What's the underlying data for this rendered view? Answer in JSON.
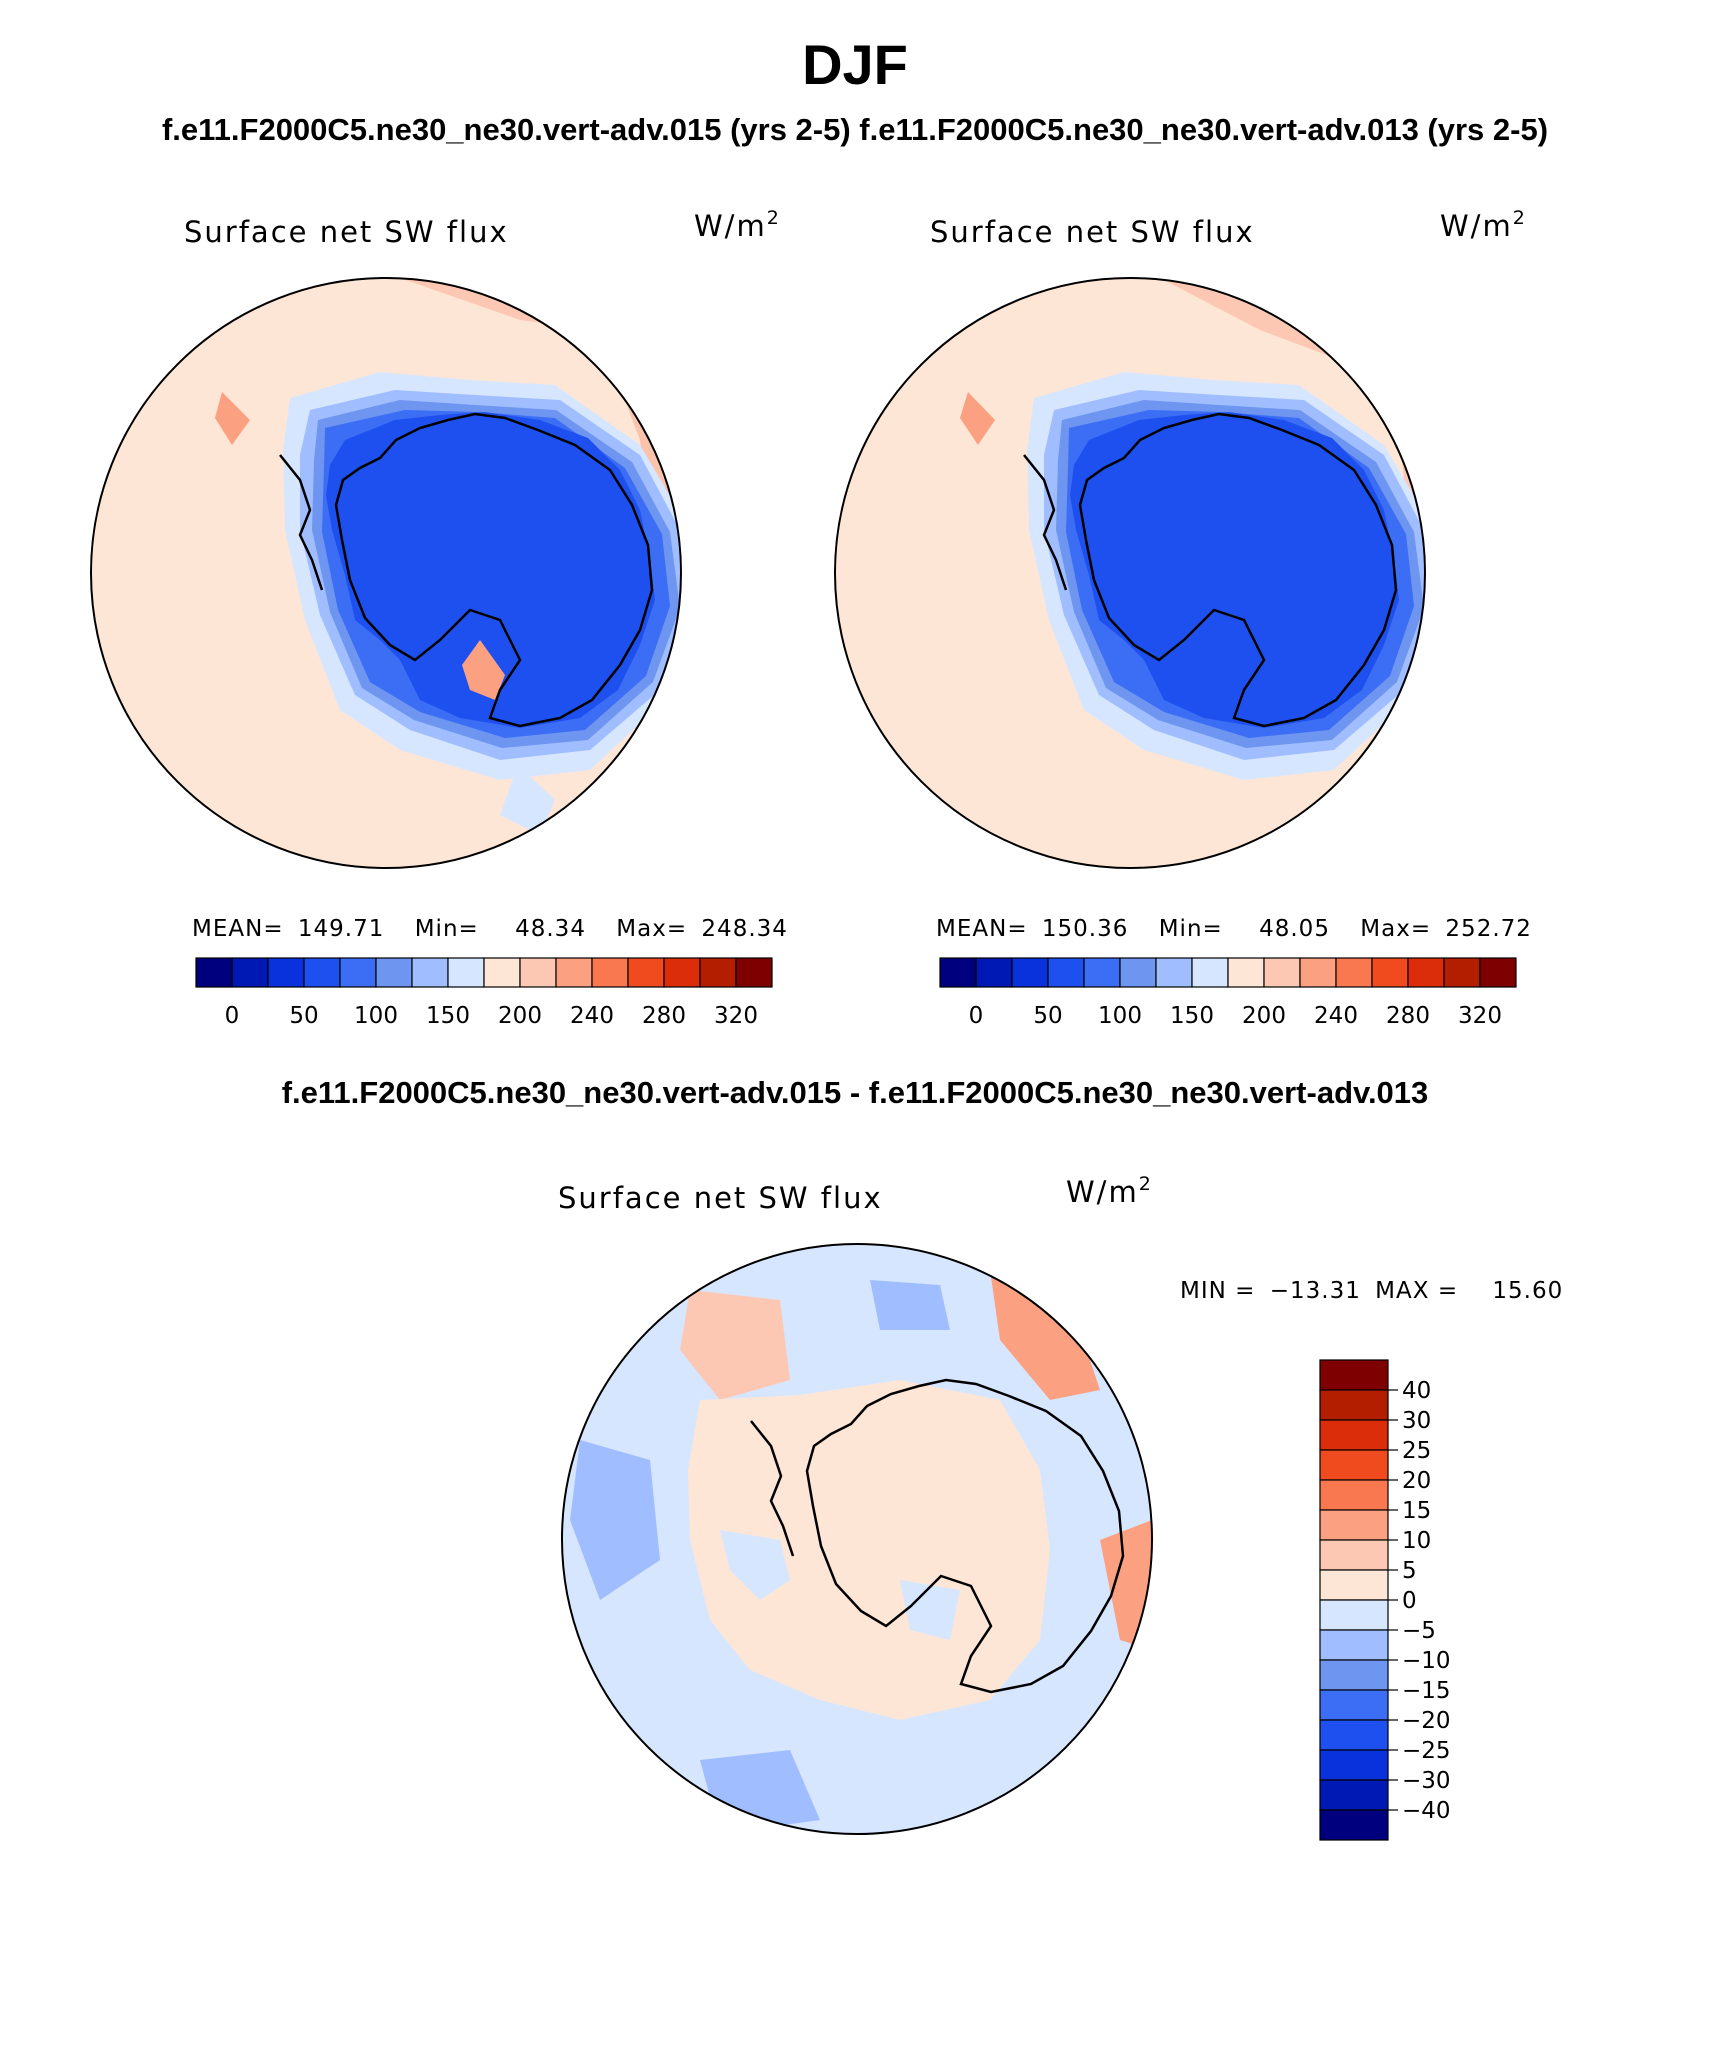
{
  "header": {
    "title": "DJF",
    "subtitle": "f.e11.F2000C5.ne30_ne30.vert-adv.015 (yrs 2-5)  f.e11.F2000C5.ne30_ne30.vert-adv.013 (yrs 2-5)",
    "difference_title": "f.e11.F2000C5.ne30_ne30.vert-adv.015 - f.e11.F2000C5.ne30_ne30.vert-adv.013"
  },
  "colors": {
    "abs_scale": [
      "#00007f",
      "#0019b4",
      "#0a32dc",
      "#1e50f0",
      "#3c6ef5",
      "#6e96f0",
      "#a0beff",
      "#d7e6ff",
      "#fde6d6",
      "#fcc8b4",
      "#fca082",
      "#fa7850",
      "#f04b1e",
      "#dc2d0a",
      "#b41e00",
      "#7f0000"
    ],
    "diff_scale": [
      "#00007f",
      "#0019b4",
      "#0a32dc",
      "#1e50f0",
      "#3c6ef5",
      "#6e96f0",
      "#a0beff",
      "#d7e6ff",
      "#fde6d6",
      "#fcc8b4",
      "#fca082",
      "#fa7850",
      "#f04b1e",
      "#dc2d0a",
      "#b41e00",
      "#7f0000"
    ]
  },
  "chart_data": [
    {
      "type": "heatmap",
      "title": "Surface net SW flux",
      "units_label": "W/m",
      "units_superscript": "2",
      "stats": {
        "mean_label": "MEAN=",
        "mean": "149.71",
        "min_label": "Min=",
        "min": "48.34",
        "max_label": "Max=",
        "max": "248.34"
      },
      "colorbar_ticks": [
        "0",
        "50",
        "100",
        "150",
        "200",
        "240",
        "280",
        "320"
      ],
      "projection": "south polar stereographic"
    },
    {
      "type": "heatmap",
      "title": "Surface net SW flux",
      "units_label": "W/m",
      "units_superscript": "2",
      "stats": {
        "mean_label": "MEAN=",
        "mean": "150.36",
        "min_label": "Min=",
        "min": "48.05",
        "max_label": "Max=",
        "max": "252.72"
      },
      "colorbar_ticks": [
        "0",
        "50",
        "100",
        "150",
        "200",
        "240",
        "280",
        "320"
      ],
      "projection": "south polar stereographic"
    },
    {
      "type": "heatmap",
      "title": "Surface net SW flux",
      "units_label": "W/m",
      "units_superscript": "2",
      "stats": {
        "min_label": "MIN =",
        "min": "−13.31",
        "max_label": "MAX =",
        "max": "15.60"
      },
      "colorbar_ticks": [
        "40",
        "30",
        "25",
        "20",
        "15",
        "10",
        "5",
        "0",
        "−5",
        "−10",
        "−15",
        "−20",
        "−25",
        "−30",
        "−40"
      ],
      "projection": "south polar stereographic"
    }
  ]
}
